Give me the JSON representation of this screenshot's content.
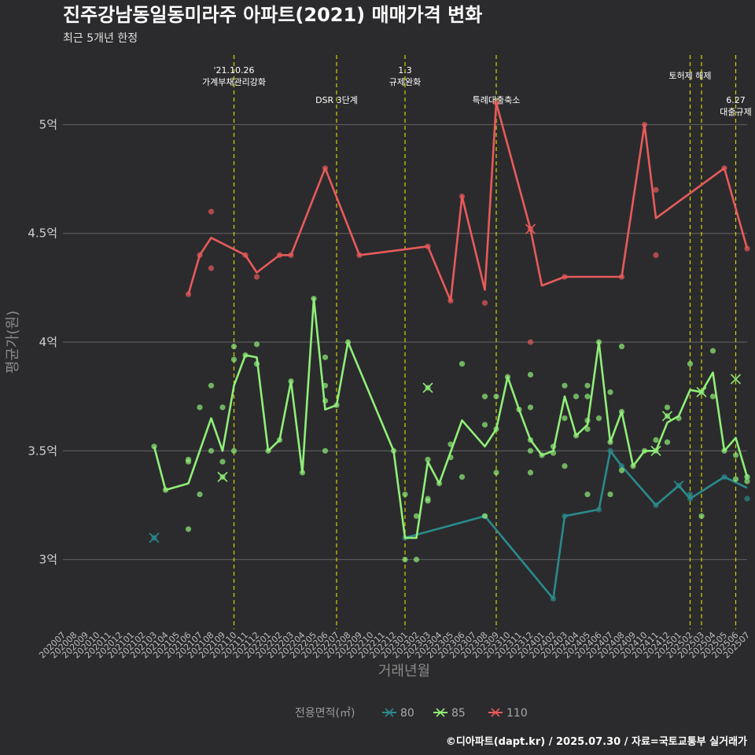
{
  "chart_data": {
    "type": "line",
    "title": "진주강남동일동미라주 아파트(2021) 매매가격 변화",
    "subtitle": "최근 5개년 한정",
    "xlabel": "거래년월",
    "ylabel": "평균가(원)",
    "caption": "©디아파트(dapt.kr) / 2025.07.30 / 자료=국토교통부 실거래가",
    "x_categories": [
      "202007",
      "202008",
      "202009",
      "202010",
      "202011",
      "202012",
      "202101",
      "202102",
      "202103",
      "202104",
      "202105",
      "202106",
      "202107",
      "202108",
      "202109",
      "202110",
      "202111",
      "202112",
      "202201",
      "202202",
      "202203",
      "202204",
      "202205",
      "202206",
      "202207",
      "202208",
      "202209",
      "202210",
      "202211",
      "202212",
      "202301",
      "202302",
      "202303",
      "202304",
      "202305",
      "202306",
      "202307",
      "202308",
      "202309",
      "202310",
      "202311",
      "202312",
      "202401",
      "202402",
      "202403",
      "202404",
      "202405",
      "202406",
      "202407",
      "202408",
      "202409",
      "202410",
      "202411",
      "202412",
      "202501",
      "202502",
      "202503",
      "202504",
      "202505",
      "202506",
      "202507"
    ],
    "y_unit_label": "억",
    "y_ticks": [
      3,
      3.5,
      4,
      4.5,
      5
    ],
    "y_tick_labels": [
      "3억",
      "3.5억",
      "4억",
      "4.5억",
      "5억"
    ],
    "ylim": [
      2.68,
      5.32
    ],
    "grid": true,
    "legend": {
      "title": "전용면적(㎡)",
      "position": "bottom"
    },
    "series": [
      {
        "name": "80",
        "color": "#2a8a8c",
        "line": [
          [
            "202301",
            3.1
          ],
          [
            "202308",
            3.2
          ],
          [
            "202402",
            2.82
          ],
          [
            "202403",
            3.2
          ],
          [
            "202406",
            3.23
          ],
          [
            "202407",
            3.5
          ],
          [
            "202408",
            3.43
          ],
          [
            "202411",
            3.25
          ],
          [
            "202501",
            3.34
          ],
          [
            "202502",
            3.28
          ],
          [
            "202505",
            3.38
          ],
          [
            "202507",
            3.33
          ]
        ],
        "points": [
          [
            "202103",
            3.1
          ],
          [
            "202301",
            3.1
          ],
          [
            "202308",
            3.2
          ],
          [
            "202402",
            2.82
          ],
          [
            "202403",
            3.2
          ],
          [
            "202406",
            3.23
          ],
          [
            "202407",
            3.5
          ],
          [
            "202408",
            3.43
          ],
          [
            "202411",
            3.25
          ],
          [
            "202501",
            3.34
          ],
          [
            "202502",
            3.3
          ],
          [
            "202502",
            3.28
          ],
          [
            "202505",
            3.38
          ],
          [
            "202507",
            3.38
          ],
          [
            "202507",
            3.28
          ]
        ],
        "crosses": [
          [
            "202103",
            3.1
          ],
          [
            "202501",
            3.34
          ]
        ]
      },
      {
        "name": "85",
        "color": "#90ee78",
        "line": [
          [
            "202103",
            3.52
          ],
          [
            "202104",
            3.32
          ],
          [
            "202106",
            3.35
          ],
          [
            "202108",
            3.65
          ],
          [
            "202109",
            3.5
          ],
          [
            "202110",
            3.8
          ],
          [
            "202111",
            3.94
          ],
          [
            "202112",
            3.93
          ],
          [
            "202201",
            3.5
          ],
          [
            "202202",
            3.55
          ],
          [
            "202203",
            3.82
          ],
          [
            "202204",
            3.4
          ],
          [
            "202205",
            4.2
          ],
          [
            "202206",
            3.69
          ],
          [
            "202207",
            3.71
          ],
          [
            "202208",
            4.0
          ],
          [
            "202212",
            3.5
          ],
          [
            "202301",
            3.1
          ],
          [
            "202302",
            3.1
          ],
          [
            "202303",
            3.45
          ],
          [
            "202304",
            3.35
          ],
          [
            "202306",
            3.64
          ],
          [
            "202308",
            3.52
          ],
          [
            "202309",
            3.6
          ],
          [
            "202310",
            3.84
          ],
          [
            "202311",
            3.69
          ],
          [
            "202312",
            3.55
          ],
          [
            "202401",
            3.48
          ],
          [
            "202402",
            3.5
          ],
          [
            "202403",
            3.75
          ],
          [
            "202404",
            3.57
          ],
          [
            "202405",
            3.62
          ],
          [
            "202406",
            4.0
          ],
          [
            "202407",
            3.54
          ],
          [
            "202408",
            3.68
          ],
          [
            "202409",
            3.43
          ],
          [
            "202410",
            3.5
          ],
          [
            "202411",
            3.5
          ],
          [
            "202412",
            3.63
          ],
          [
            "202501",
            3.66
          ],
          [
            "202502",
            3.78
          ],
          [
            "202503",
            3.77
          ],
          [
            "202504",
            3.86
          ],
          [
            "202505",
            3.5
          ],
          [
            "202506",
            3.56
          ],
          [
            "202507",
            3.38
          ]
        ],
        "points": [
          [
            "202103",
            3.52
          ],
          [
            "202104",
            3.32
          ],
          [
            "202106",
            3.45
          ],
          [
            "202106",
            3.46
          ],
          [
            "202106",
            3.14
          ],
          [
            "202107",
            3.7
          ],
          [
            "202107",
            3.3
          ],
          [
            "202108",
            3.8
          ],
          [
            "202108",
            3.5
          ],
          [
            "202109",
            3.7
          ],
          [
            "202109",
            3.45
          ],
          [
            "202109",
            3.38
          ],
          [
            "202110",
            3.98
          ],
          [
            "202110",
            3.92
          ],
          [
            "202110",
            3.5
          ],
          [
            "202111",
            3.94
          ],
          [
            "202112",
            3.99
          ],
          [
            "202112",
            3.9
          ],
          [
            "202201",
            3.5
          ],
          [
            "202202",
            3.55
          ],
          [
            "202203",
            3.82
          ],
          [
            "202204",
            3.4
          ],
          [
            "202205",
            4.2
          ],
          [
            "202206",
            3.93
          ],
          [
            "202206",
            3.8
          ],
          [
            "202206",
            3.73
          ],
          [
            "202206",
            3.5
          ],
          [
            "202207",
            3.71
          ],
          [
            "202208",
            4.0
          ],
          [
            "202212",
            3.5
          ],
          [
            "202301",
            3.3
          ],
          [
            "202301",
            3.0
          ],
          [
            "202302",
            3.2
          ],
          [
            "202302",
            3.0
          ],
          [
            "202303",
            3.79
          ],
          [
            "202303",
            3.46
          ],
          [
            "202303",
            3.28
          ],
          [
            "202303",
            3.27
          ],
          [
            "202304",
            3.35
          ],
          [
            "202305",
            3.53
          ],
          [
            "202305",
            3.47
          ],
          [
            "202306",
            3.9
          ],
          [
            "202306",
            3.38
          ],
          [
            "202308",
            3.75
          ],
          [
            "202308",
            3.62
          ],
          [
            "202308",
            3.2
          ],
          [
            "202309",
            3.75
          ],
          [
            "202309",
            3.6
          ],
          [
            "202309",
            3.4
          ],
          [
            "202310",
            3.84
          ],
          [
            "202311",
            3.69
          ],
          [
            "202312",
            3.85
          ],
          [
            "202312",
            3.7
          ],
          [
            "202312",
            3.55
          ],
          [
            "202312",
            3.5
          ],
          [
            "202312",
            3.4
          ],
          [
            "202401",
            3.48
          ],
          [
            "202402",
            3.52
          ],
          [
            "202402",
            3.49
          ],
          [
            "202403",
            3.8
          ],
          [
            "202403",
            3.65
          ],
          [
            "202403",
            3.43
          ],
          [
            "202404",
            3.75
          ],
          [
            "202404",
            3.57
          ],
          [
            "202405",
            3.8
          ],
          [
            "202405",
            3.75
          ],
          [
            "202405",
            3.64
          ],
          [
            "202405",
            3.6
          ],
          [
            "202405",
            3.3
          ],
          [
            "202406",
            4.0
          ],
          [
            "202406",
            3.65
          ],
          [
            "202407",
            3.77
          ],
          [
            "202407",
            3.54
          ],
          [
            "202407",
            3.3
          ],
          [
            "202408",
            3.98
          ],
          [
            "202408",
            3.68
          ],
          [
            "202408",
            3.41
          ],
          [
            "202409",
            3.43
          ],
          [
            "202410",
            3.5
          ],
          [
            "202411",
            3.55
          ],
          [
            "202411",
            3.5
          ],
          [
            "202412",
            3.7
          ],
          [
            "202412",
            3.66
          ],
          [
            "202412",
            3.54
          ],
          [
            "202501",
            3.65
          ],
          [
            "202502",
            3.9
          ],
          [
            "202503",
            3.77
          ],
          [
            "202503",
            3.2
          ],
          [
            "202504",
            3.96
          ],
          [
            "202504",
            3.75
          ],
          [
            "202505",
            3.5
          ],
          [
            "202506",
            3.48
          ],
          [
            "202506",
            3.37
          ],
          [
            "202507",
            3.38
          ],
          [
            "202507",
            3.36
          ]
        ],
        "crosses": [
          [
            "202109",
            3.38
          ],
          [
            "202303",
            3.79
          ],
          [
            "202411",
            3.5
          ],
          [
            "202412",
            3.66
          ],
          [
            "202503",
            3.77
          ],
          [
            "202506",
            3.83
          ]
        ]
      },
      {
        "name": "110",
        "color": "#e85a5a",
        "line": [
          [
            "202106",
            4.22
          ],
          [
            "202107",
            4.4
          ],
          [
            "202108",
            4.48
          ],
          [
            "202111",
            4.4
          ],
          [
            "202112",
            4.32
          ],
          [
            "202202",
            4.4
          ],
          [
            "202203",
            4.4
          ],
          [
            "202206",
            4.8
          ],
          [
            "202209",
            4.4
          ],
          [
            "202303",
            4.44
          ],
          [
            "202305",
            4.19
          ],
          [
            "202306",
            4.67
          ],
          [
            "202308",
            4.24
          ],
          [
            "202309",
            5.1
          ],
          [
            "202312",
            4.52
          ],
          [
            "202401",
            4.26
          ],
          [
            "202403",
            4.3
          ],
          [
            "202408",
            4.3
          ],
          [
            "202410",
            5.0
          ],
          [
            "202411",
            4.57
          ],
          [
            "202505",
            4.8
          ],
          [
            "202507",
            4.43
          ]
        ],
        "points": [
          [
            "202106",
            4.22
          ],
          [
            "202107",
            4.4
          ],
          [
            "202108",
            4.6
          ],
          [
            "202108",
            4.34
          ],
          [
            "202111",
            4.4
          ],
          [
            "202112",
            4.3
          ],
          [
            "202202",
            4.4
          ],
          [
            "202203",
            4.4
          ],
          [
            "202206",
            4.8
          ],
          [
            "202209",
            4.4
          ],
          [
            "202303",
            4.44
          ],
          [
            "202305",
            4.19
          ],
          [
            "202306",
            4.67
          ],
          [
            "202308",
            4.18
          ],
          [
            "202309",
            5.1
          ],
          [
            "202312",
            4.52
          ],
          [
            "202312",
            4.0
          ],
          [
            "202403",
            4.3
          ],
          [
            "202408",
            4.3
          ],
          [
            "202410",
            5.0
          ],
          [
            "202411",
            4.7
          ],
          [
            "202411",
            4.4
          ],
          [
            "202505",
            4.8
          ],
          [
            "202507",
            4.43
          ]
        ],
        "crosses": [
          [
            "202312",
            4.52
          ]
        ]
      }
    ],
    "events": [
      {
        "x": "202110",
        "lines": [
          "'21.10.26",
          "가계부채관리강화"
        ],
        "row": 0
      },
      {
        "x": "202207",
        "lines": [
          "DSR 3단계"
        ],
        "row": 2
      },
      {
        "x": "202301",
        "lines": [
          "1.3",
          "규제완화"
        ],
        "row": 0
      },
      {
        "x": "202309",
        "lines": [
          "특례대출축소"
        ],
        "row": 2
      },
      {
        "x": "202502",
        "lines": [
          "토허제 해제"
        ],
        "row": 1
      },
      {
        "x": "202503",
        "lines": [],
        "row": 1
      },
      {
        "x": "202506",
        "lines": [
          "6.27",
          "대출규제"
        ],
        "row": 2
      }
    ]
  }
}
